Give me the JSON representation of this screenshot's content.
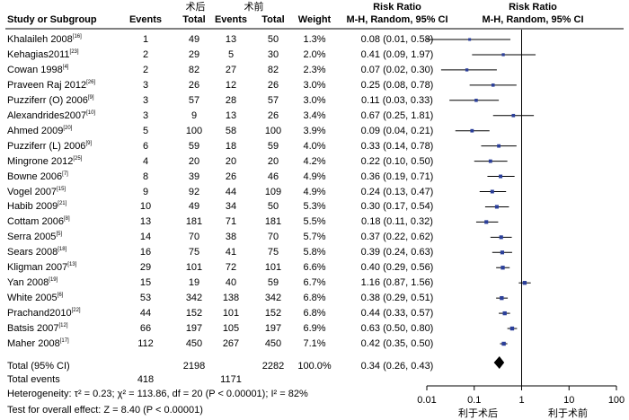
{
  "header": {
    "group_exp": "术后",
    "group_ctrl": "术前",
    "col_study": "Study or Subgroup",
    "col_events_exp": "Events",
    "col_total_exp": "Total",
    "col_events_ctrl": "Events",
    "col_total_ctrl": "Total",
    "col_weight": "Weight",
    "col_rr_title": "Risk Ratio",
    "col_rr_method": "M-H, Random, 95% CI",
    "plot_title": "Risk Ratio",
    "plot_method": "M-H, Random, 95% CI"
  },
  "studies": [
    {
      "name": "Khalaileh 2008",
      "ref": "[16]",
      "e1": "1",
      "t1": "49",
      "e2": "13",
      "t2": "50",
      "weight": "1.3%",
      "ci": "0.08 (0.01, 0.58)"
    },
    {
      "name": "Kehagias2011",
      "ref": "[23]",
      "e1": "2",
      "t1": "29",
      "e2": "5",
      "t2": "30",
      "weight": "2.0%",
      "ci": "0.41 (0.09, 1.97)"
    },
    {
      "name": "Cowan 1998",
      "ref": "[4]",
      "e1": "2",
      "t1": "82",
      "e2": "27",
      "t2": "82",
      "weight": "2.3%",
      "ci": "0.07 (0.02, 0.30)"
    },
    {
      "name": "Praveen Raj 2012",
      "ref": "[26]",
      "e1": "3",
      "t1": "26",
      "e2": "12",
      "t2": "26",
      "weight": "3.0%",
      "ci": "0.25 (0.08, 0.78)"
    },
    {
      "name": "Puzziferr (O) 2006",
      "ref": "[9]",
      "e1": "3",
      "t1": "57",
      "e2": "28",
      "t2": "57",
      "weight": "3.0%",
      "ci": "0.11 (0.03, 0.33)"
    },
    {
      "name": "Alexandrides2007",
      "ref": "[10]",
      "e1": "3",
      "t1": "9",
      "e2": "13",
      "t2": "26",
      "weight": "3.4%",
      "ci": "0.67 (0.25, 1.81)"
    },
    {
      "name": "Ahmed 2009",
      "ref": "[20]",
      "e1": "5",
      "t1": "100",
      "e2": "58",
      "t2": "100",
      "weight": "3.9%",
      "ci": "0.09 (0.04, 0.21)"
    },
    {
      "name": "Puzziferr (L) 2006",
      "ref": "[9]",
      "e1": "6",
      "t1": "59",
      "e2": "18",
      "t2": "59",
      "weight": "4.0%",
      "ci": "0.33 (0.14, 0.78)"
    },
    {
      "name": "Mingrone 2012",
      "ref": "[25]",
      "e1": "4",
      "t1": "20",
      "e2": "20",
      "t2": "20",
      "weight": "4.2%",
      "ci": "0.22 (0.10, 0.50)"
    },
    {
      "name": "Bowne 2006",
      "ref": "[7]",
      "e1": "8",
      "t1": "39",
      "e2": "26",
      "t2": "46",
      "weight": "4.9%",
      "ci": "0.36 (0.19, 0.71)"
    },
    {
      "name": "Vogel 2007",
      "ref": "[15]",
      "e1": "9",
      "t1": "92",
      "e2": "44",
      "t2": "109",
      "weight": "4.9%",
      "ci": "0.24 (0.13, 0.47)"
    },
    {
      "name": "Habib 2009",
      "ref": "[21]",
      "e1": "10",
      "t1": "49",
      "e2": "34",
      "t2": "50",
      "weight": "5.3%",
      "ci": "0.30 (0.17, 0.54)"
    },
    {
      "name": "Cottam 2006",
      "ref": "[8]",
      "e1": "13",
      "t1": "181",
      "e2": "71",
      "t2": "181",
      "weight": "5.5%",
      "ci": "0.18 (0.11, 0.32)"
    },
    {
      "name": "Serra 2005",
      "ref": "[5]",
      "e1": "14",
      "t1": "70",
      "e2": "38",
      "t2": "70",
      "weight": "5.7%",
      "ci": "0.37 (0.22, 0.62)"
    },
    {
      "name": "Sears 2008",
      "ref": "[18]",
      "e1": "16",
      "t1": "75",
      "e2": "41",
      "t2": "75",
      "weight": "5.8%",
      "ci": "0.39 (0.24, 0.63)"
    },
    {
      "name": "Kligman 2007",
      "ref": "[13]",
      "e1": "29",
      "t1": "101",
      "e2": "72",
      "t2": "101",
      "weight": "6.6%",
      "ci": "0.40 (0.29, 0.56)"
    },
    {
      "name": "Yan 2008",
      "ref": "[19]",
      "e1": "15",
      "t1": "19",
      "e2": "40",
      "t2": "59",
      "weight": "6.7%",
      "ci": "1.16 (0.87, 1.56)"
    },
    {
      "name": "White 2005",
      "ref": "[6]",
      "e1": "53",
      "t1": "342",
      "e2": "138",
      "t2": "342",
      "weight": "6.8%",
      "ci": "0.38 (0.29, 0.51)"
    },
    {
      "name": "Prachand2010",
      "ref": "[22]",
      "e1": "44",
      "t1": "152",
      "e2": "101",
      "t2": "152",
      "weight": "6.8%",
      "ci": "0.44 (0.33, 0.57)"
    },
    {
      "name": "Batsis 2007",
      "ref": "[12]",
      "e1": "66",
      "t1": "197",
      "e2": "105",
      "t2": "197",
      "weight": "6.9%",
      "ci": "0.63 (0.50, 0.80)"
    },
    {
      "name": "Maher 2008",
      "ref": "[17]",
      "e1": "112",
      "t1": "450",
      "e2": "267",
      "t2": "450",
      "weight": "7.1%",
      "ci": "0.42 (0.35, 0.50)"
    }
  ],
  "total": {
    "label": "Total (95% CI)",
    "t1": "2198",
    "t2": "2282",
    "weight": "100.0%",
    "ci": "0.34 (0.26, 0.43)"
  },
  "total_events": {
    "label": "Total events",
    "e1": "418",
    "e2": "1171"
  },
  "heterogeneity": "Heterogeneity: τ² = 0.23;  χ² = 113.86, df = 20 (P < 0.00001); I² = 82%",
  "overall_test": "Test for overall effect: Z = 8.40 (P < 0.00001)",
  "axis": {
    "ticks": [
      "0.01",
      "0.1",
      "1",
      "10",
      "100"
    ],
    "favours_left": "利于术后",
    "favours_right": "利于术前"
  },
  "chart_data": {
    "type": "forest",
    "x_scale": "log",
    "xlim": [
      0.01,
      100
    ],
    "reference_line": 1,
    "points": [
      {
        "study": "Khalaileh 2008",
        "rr": 0.08,
        "lo": 0.01,
        "hi": 0.58,
        "weight": 1.3
      },
      {
        "study": "Kehagias2011",
        "rr": 0.41,
        "lo": 0.09,
        "hi": 1.97,
        "weight": 2.0
      },
      {
        "study": "Cowan 1998",
        "rr": 0.07,
        "lo": 0.02,
        "hi": 0.3,
        "weight": 2.3
      },
      {
        "study": "Praveen Raj 2012",
        "rr": 0.25,
        "lo": 0.08,
        "hi": 0.78,
        "weight": 3.0
      },
      {
        "study": "Puzziferr (O) 2006",
        "rr": 0.11,
        "lo": 0.03,
        "hi": 0.33,
        "weight": 3.0
      },
      {
        "study": "Alexandrides2007",
        "rr": 0.67,
        "lo": 0.25,
        "hi": 1.81,
        "weight": 3.4
      },
      {
        "study": "Ahmed 2009",
        "rr": 0.09,
        "lo": 0.04,
        "hi": 0.21,
        "weight": 3.9
      },
      {
        "study": "Puzziferr (L) 2006",
        "rr": 0.33,
        "lo": 0.14,
        "hi": 0.78,
        "weight": 4.0
      },
      {
        "study": "Mingrone 2012",
        "rr": 0.22,
        "lo": 0.1,
        "hi": 0.5,
        "weight": 4.2
      },
      {
        "study": "Bowne 2006",
        "rr": 0.36,
        "lo": 0.19,
        "hi": 0.71,
        "weight": 4.9
      },
      {
        "study": "Vogel 2007",
        "rr": 0.24,
        "lo": 0.13,
        "hi": 0.47,
        "weight": 4.9
      },
      {
        "study": "Habib 2009",
        "rr": 0.3,
        "lo": 0.17,
        "hi": 0.54,
        "weight": 5.3
      },
      {
        "study": "Cottam 2006",
        "rr": 0.18,
        "lo": 0.11,
        "hi": 0.32,
        "weight": 5.5
      },
      {
        "study": "Serra 2005",
        "rr": 0.37,
        "lo": 0.22,
        "hi": 0.62,
        "weight": 5.7
      },
      {
        "study": "Sears 2008",
        "rr": 0.39,
        "lo": 0.24,
        "hi": 0.63,
        "weight": 5.8
      },
      {
        "study": "Kligman 2007",
        "rr": 0.4,
        "lo": 0.29,
        "hi": 0.56,
        "weight": 6.6
      },
      {
        "study": "Yan 2008",
        "rr": 1.16,
        "lo": 0.87,
        "hi": 1.56,
        "weight": 6.7
      },
      {
        "study": "White 2005",
        "rr": 0.38,
        "lo": 0.29,
        "hi": 0.51,
        "weight": 6.8
      },
      {
        "study": "Prachand2010",
        "rr": 0.44,
        "lo": 0.33,
        "hi": 0.57,
        "weight": 6.8
      },
      {
        "study": "Batsis 2007",
        "rr": 0.63,
        "lo": 0.5,
        "hi": 0.8,
        "weight": 6.9
      },
      {
        "study": "Maher 2008",
        "rr": 0.42,
        "lo": 0.35,
        "hi": 0.5,
        "weight": 7.1
      }
    ],
    "pooled": {
      "rr": 0.34,
      "lo": 0.26,
      "hi": 0.43
    }
  }
}
